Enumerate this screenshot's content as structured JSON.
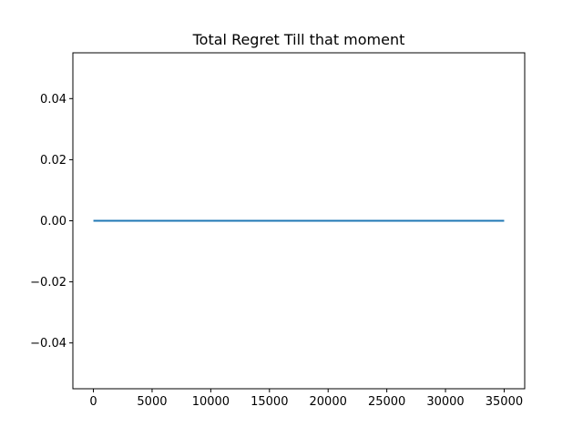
{
  "chart_data": {
    "type": "line",
    "title": "Total Regret Till that moment",
    "xlabel": "",
    "ylabel": "",
    "xlim": [
      -1750,
      36750
    ],
    "ylim": [
      -0.055,
      0.055
    ],
    "x_ticks": [
      0,
      5000,
      10000,
      15000,
      20000,
      25000,
      30000,
      35000
    ],
    "x_tick_labels": [
      "0",
      "5000",
      "10000",
      "15000",
      "20000",
      "25000",
      "30000",
      "35000"
    ],
    "y_ticks": [
      -0.04,
      -0.02,
      0.0,
      0.02,
      0.04
    ],
    "y_tick_labels": [
      "−0.04",
      "−0.02",
      "0.00",
      "0.02",
      "0.04"
    ],
    "grid": false,
    "series": [
      {
        "color": "#1f77b4",
        "x": [
          0,
          35000
        ],
        "y": [
          0,
          0
        ]
      }
    ]
  }
}
